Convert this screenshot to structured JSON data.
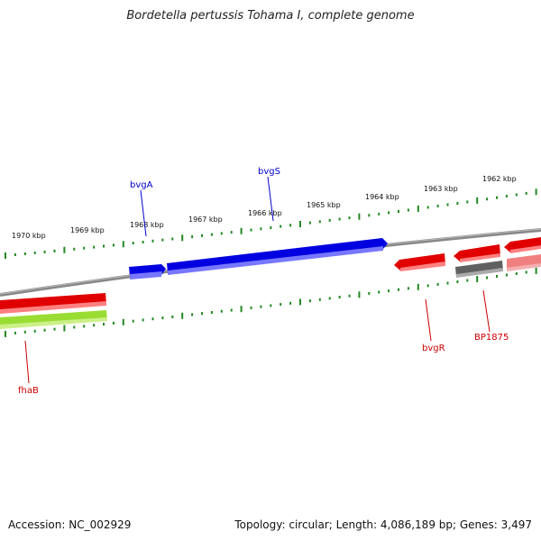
{
  "title": "Bordetella pertussis Tohama I, complete genome",
  "footer": {
    "accession": "Accession: NC_002929",
    "summary": "Topology: circular; Length: 4,086,189 bp; Genes: 3,497"
  },
  "kbp_labels": [
    "1970 kbp",
    "1969 kbp",
    "1968 kbp",
    "1967 kbp",
    "1966 kbp",
    "1965 kbp",
    "1964 kbp",
    "1963 kbp",
    "1962 kbp"
  ],
  "genes": {
    "bvgA": "bvgA",
    "bvgS": "bvgS",
    "bvgR": "bvgR",
    "BP1875": "BP1875",
    "fhaB": "fhaB"
  },
  "colors": {
    "forward_gene": "#0000e0",
    "reverse_gene": "#e00000",
    "reverse_gene_light": "#f08080",
    "rna_gene": "#99dd33",
    "pseudo_gene": "#606060",
    "backbone": "#888888",
    "ticks": "#228822",
    "forward_label": "#0000cc",
    "reverse_label": "#cc0000"
  }
}
